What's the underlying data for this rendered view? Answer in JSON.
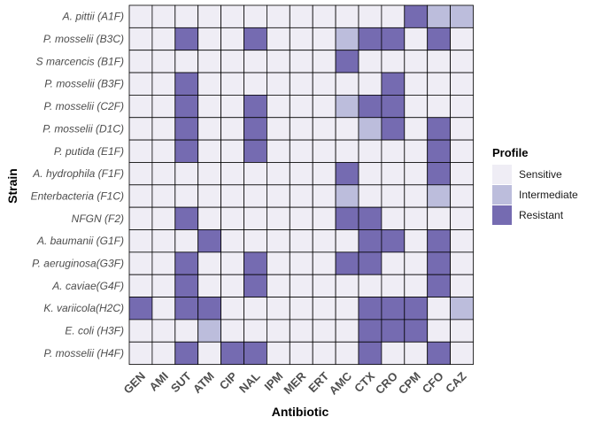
{
  "chart_data": {
    "type": "heatmap",
    "xlabel": "Antibiotic",
    "ylabel": "Strain",
    "x_categories": [
      "GEN",
      "AMI",
      "SUT",
      "ATM",
      "CIP",
      "NAL",
      "IPM",
      "MER",
      "ERT",
      "AMC",
      "CTX",
      "CRO",
      "CPM",
      "CFO",
      "CAZ"
    ],
    "y_categories": [
      "A. pittii (A1F)",
      "P. mosselii (B3C)",
      "S marcencis (B1F)",
      "P. mosselii (B3F)",
      "P. mosselii (C2F)",
      "P. mosselii (D1C)",
      "P. putida (E1F)",
      "A. hydrophila (F1F)",
      "Enterbacteria (F1C)",
      "NFGN (F2)",
      "A. baumanii (G1F)",
      "P. aeruginosa(G3F)",
      "A. caviae(G4F)",
      "K. variicola(H2C)",
      "E. coli (H3F)",
      "P. mosselii (H4F)"
    ],
    "values": [
      [
        "S",
        "S",
        "S",
        "S",
        "S",
        "S",
        "S",
        "S",
        "S",
        "S",
        "S",
        "S",
        "R",
        "I",
        "I"
      ],
      [
        "S",
        "S",
        "R",
        "S",
        "S",
        "R",
        "S",
        "S",
        "S",
        "I",
        "R",
        "R",
        "S",
        "R",
        "S"
      ],
      [
        "S",
        "S",
        "S",
        "S",
        "S",
        "S",
        "S",
        "S",
        "S",
        "R",
        "S",
        "S",
        "S",
        "S",
        "S"
      ],
      [
        "S",
        "S",
        "R",
        "S",
        "S",
        "S",
        "S",
        "S",
        "S",
        "S",
        "S",
        "R",
        "S",
        "S",
        "S"
      ],
      [
        "S",
        "S",
        "R",
        "S",
        "S",
        "R",
        "S",
        "S",
        "S",
        "I",
        "R",
        "R",
        "S",
        "S",
        "S"
      ],
      [
        "S",
        "S",
        "R",
        "S",
        "S",
        "R",
        "S",
        "S",
        "S",
        "S",
        "I",
        "R",
        "S",
        "R",
        "S"
      ],
      [
        "S",
        "S",
        "R",
        "S",
        "S",
        "R",
        "S",
        "S",
        "S",
        "S",
        "S",
        "S",
        "S",
        "R",
        "S"
      ],
      [
        "S",
        "S",
        "S",
        "S",
        "S",
        "S",
        "S",
        "S",
        "S",
        "R",
        "S",
        "S",
        "S",
        "R",
        "S"
      ],
      [
        "S",
        "S",
        "S",
        "S",
        "S",
        "S",
        "S",
        "S",
        "S",
        "I",
        "S",
        "S",
        "S",
        "I",
        "S"
      ],
      [
        "S",
        "S",
        "R",
        "S",
        "S",
        "S",
        "S",
        "S",
        "S",
        "R",
        "R",
        "S",
        "S",
        "S",
        "S"
      ],
      [
        "S",
        "S",
        "S",
        "R",
        "S",
        "S",
        "S",
        "S",
        "S",
        "S",
        "R",
        "R",
        "S",
        "R",
        "S"
      ],
      [
        "S",
        "S",
        "R",
        "S",
        "S",
        "R",
        "S",
        "S",
        "S",
        "R",
        "R",
        "S",
        "S",
        "R",
        "S"
      ],
      [
        "S",
        "S",
        "R",
        "S",
        "S",
        "R",
        "S",
        "S",
        "S",
        "S",
        "S",
        "S",
        "S",
        "R",
        "S"
      ],
      [
        "R",
        "S",
        "R",
        "R",
        "S",
        "S",
        "S",
        "S",
        "S",
        "S",
        "R",
        "R",
        "R",
        "S",
        "I"
      ],
      [
        "S",
        "S",
        "S",
        "I",
        "S",
        "S",
        "S",
        "S",
        "S",
        "S",
        "R",
        "R",
        "R",
        "S",
        "S"
      ],
      [
        "S",
        "S",
        "R",
        "S",
        "R",
        "R",
        "S",
        "S",
        "S",
        "S",
        "R",
        "S",
        "S",
        "R",
        "S"
      ]
    ],
    "legend": {
      "title": "Profile",
      "position": "right",
      "items": [
        {
          "key": "S",
          "label": "Sensitive",
          "color": "#efedf5"
        },
        {
          "key": "I",
          "label": "Intermediate",
          "color": "#bcbddc"
        },
        {
          "key": "R",
          "label": "Resistant",
          "color": "#756bb1"
        }
      ]
    },
    "cell_border_color": "#000000"
  }
}
